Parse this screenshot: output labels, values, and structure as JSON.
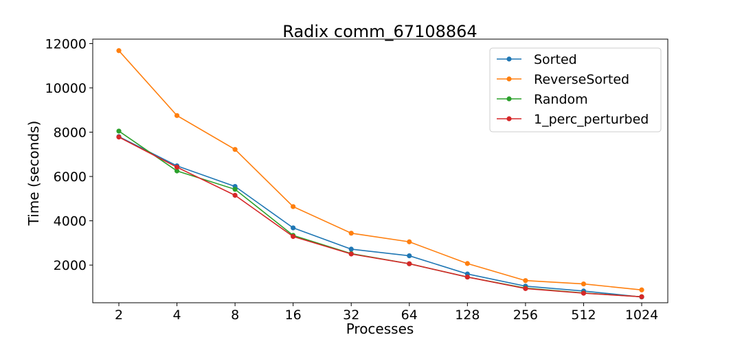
{
  "chart_data": {
    "type": "line",
    "title": "Radix comm_67108864",
    "xlabel": "Processes",
    "ylabel": "Time (seconds)",
    "categories": [
      "2",
      "4",
      "8",
      "16",
      "32",
      "64",
      "128",
      "256",
      "512",
      "1024"
    ],
    "y_ticks": [
      "2000",
      "4000",
      "6000",
      "8000",
      "10000",
      "12000"
    ],
    "ylim": [
      300,
      12200
    ],
    "grid": false,
    "legend_position": "top-right",
    "series": [
      {
        "name": "Sorted",
        "color": "#1f77b4",
        "values": [
          7800,
          6480,
          5550,
          3680,
          2720,
          2420,
          1600,
          1050,
          830,
          560
        ]
      },
      {
        "name": "ReverseSorted",
        "color": "#ff7f0e",
        "values": [
          11680,
          8750,
          7220,
          4640,
          3440,
          3050,
          2070,
          1300,
          1150,
          880
        ]
      },
      {
        "name": "Random",
        "color": "#2ca02c",
        "values": [
          8050,
          6250,
          5420,
          3340,
          2520,
          2060,
          1460,
          960,
          740,
          570
        ]
      },
      {
        "name": "1_perc_perturbed",
        "color": "#d62728",
        "values": [
          7780,
          6420,
          5150,
          3290,
          2500,
          2060,
          1460,
          940,
          730,
          570
        ]
      }
    ]
  }
}
